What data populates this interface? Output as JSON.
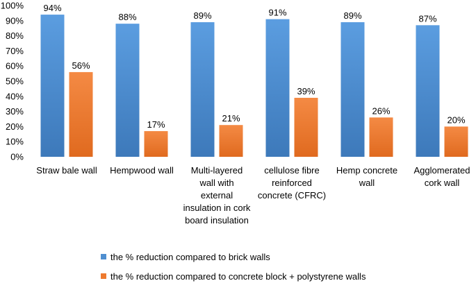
{
  "chart_data": {
    "type": "bar",
    "categories": [
      [
        "Straw bale wall"
      ],
      [
        "Hempwood wall"
      ],
      [
        "Multi-layered",
        "wall with",
        "external",
        "insulation in cork",
        "board insulation"
      ],
      [
        "cellulose fibre",
        "reinforced",
        "concrete (CFRC)"
      ],
      [
        "Hemp concrete",
        "wall"
      ],
      [
        "Agglomerated",
        "cork wall"
      ]
    ],
    "series": [
      {
        "name": "the % reduction compared to brick walls",
        "values": [
          94,
          88,
          89,
          91,
          89,
          87
        ],
        "labels": [
          "94%",
          "88%",
          "89%",
          "91%",
          "89%",
          "87%"
        ],
        "color": "#4f8fd0"
      },
      {
        "name": "the % reduction compared to concrete block + polystyrene walls",
        "values": [
          56,
          17,
          21,
          39,
          26,
          20
        ],
        "labels": [
          "56%",
          "17%",
          "21%",
          "39%",
          "26%",
          "20%"
        ],
        "color": "#ee7a2e"
      }
    ],
    "ylim": [
      0,
      100
    ],
    "yticks": [
      "0%",
      "10%",
      "20%",
      "30%",
      "40%",
      "50%",
      "60%",
      "70%",
      "80%",
      "90%",
      "100%"
    ],
    "legend_position": "bottom",
    "grid": false
  }
}
